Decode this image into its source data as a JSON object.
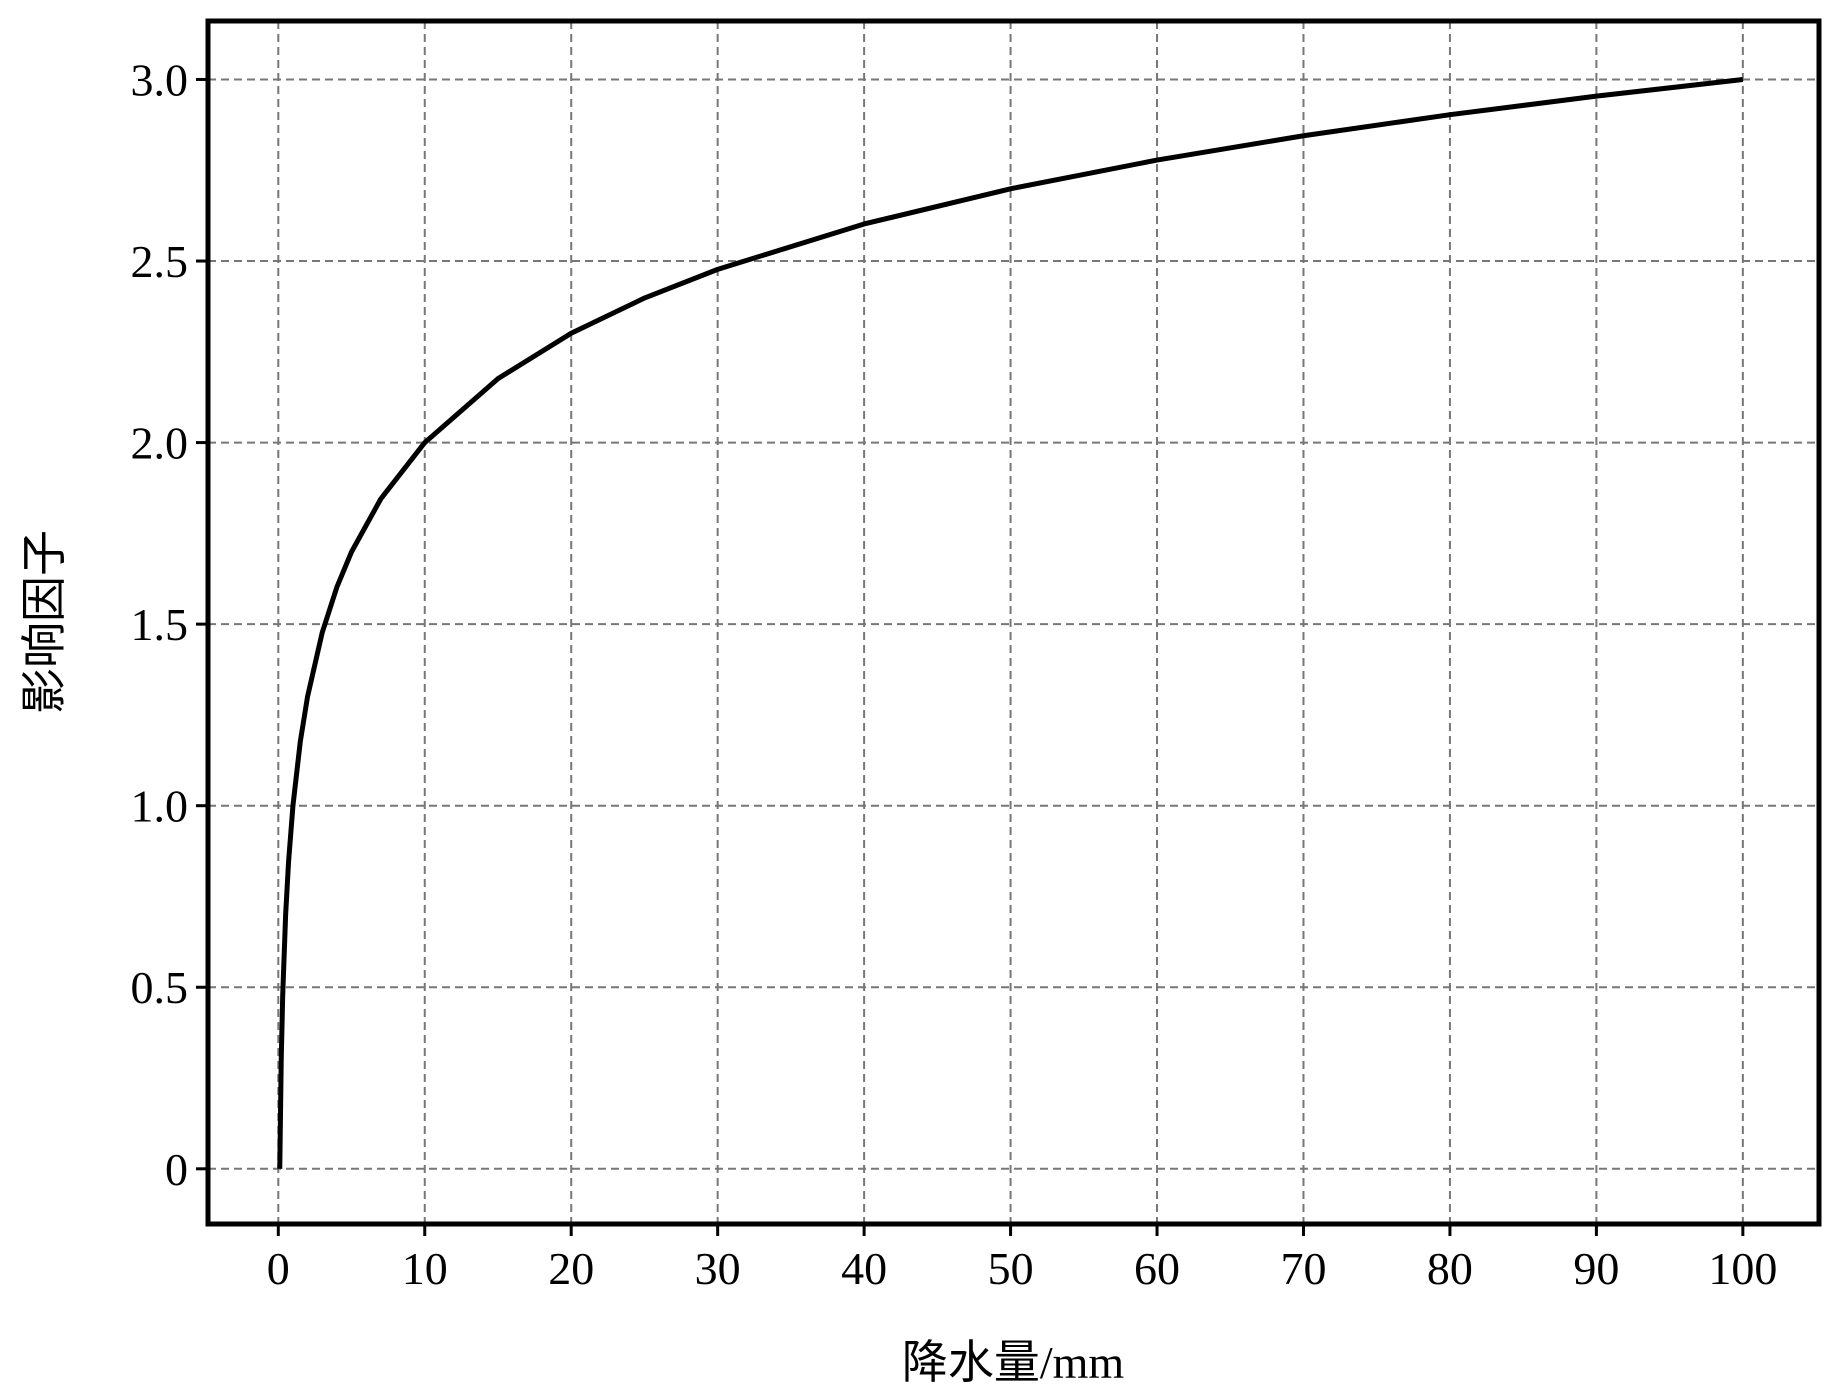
{
  "chart_data": {
    "type": "line",
    "x_label": "降水量/mm",
    "y_label": "影响因子",
    "x": [
      0.1,
      0.2,
      0.3,
      0.5,
      0.7,
      1,
      1.5,
      2,
      3,
      4,
      5,
      7,
      10,
      15,
      20,
      25,
      30,
      40,
      50,
      60,
      70,
      80,
      90,
      100
    ],
    "series": [
      {
        "color": "#000000",
        "values": [
          0,
          0.301,
          0.477,
          0.699,
          0.845,
          1,
          1.176,
          1.301,
          1.477,
          1.602,
          1.699,
          1.845,
          2,
          2.176,
          2.301,
          2.398,
          2.477,
          2.602,
          2.699,
          2.778,
          2.845,
          2.903,
          2.954,
          3
        ]
      }
    ],
    "xlim": [
      -4.8,
      105.2
    ],
    "ylim": [
      -0.152,
      3.161
    ],
    "xticks": [
      0,
      10,
      20,
      30,
      40,
      50,
      60,
      70,
      80,
      90,
      100
    ],
    "yticks": [
      0,
      0.5,
      {
        "value": 1,
        "label": "1.0"
      },
      1.5,
      {
        "value": 2,
        "label": "2.0"
      },
      2.5,
      {
        "value": 3,
        "label": "3.0"
      }
    ],
    "grid": true
  }
}
